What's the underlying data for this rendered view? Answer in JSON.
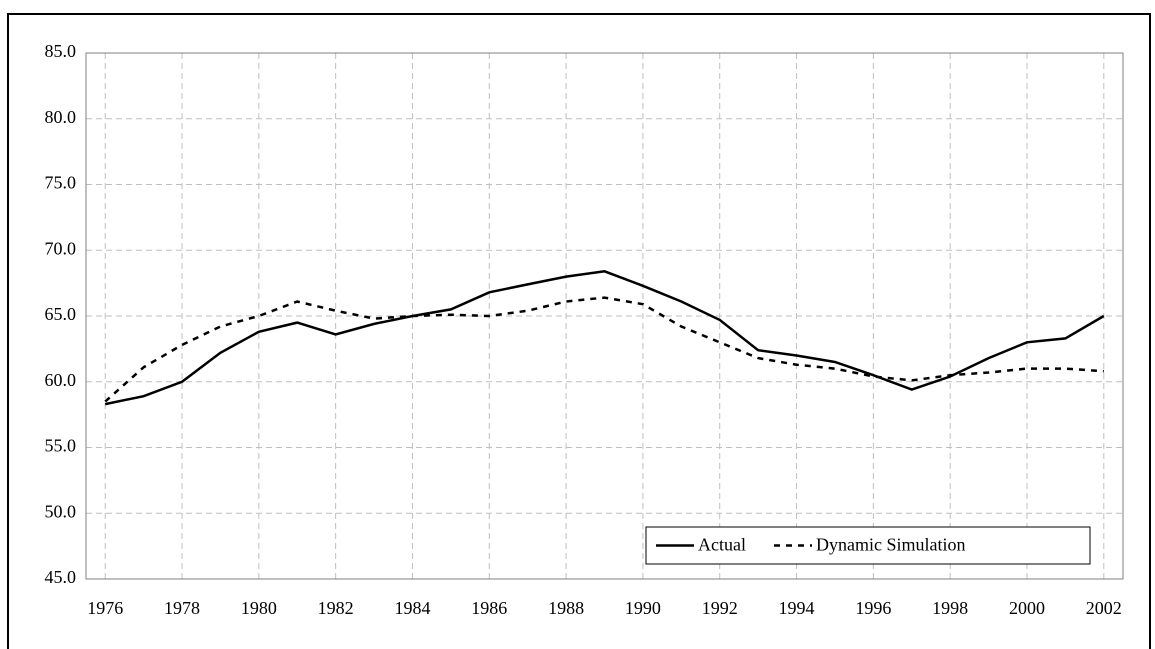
{
  "chart_data": {
    "type": "line",
    "x": [
      1976,
      1977,
      1978,
      1979,
      1980,
      1981,
      1982,
      1983,
      1984,
      1985,
      1986,
      1987,
      1988,
      1989,
      1990,
      1991,
      1992,
      1993,
      1994,
      1995,
      1996,
      1997,
      1998,
      1999,
      2000,
      2001,
      2002
    ],
    "series": [
      {
        "name": "Actual",
        "color": "#000000",
        "dash": "solid",
        "values": [
          58.3,
          58.9,
          60.0,
          62.2,
          63.8,
          64.5,
          63.6,
          64.4,
          65.0,
          65.5,
          66.8,
          67.4,
          68.0,
          68.4,
          67.3,
          66.1,
          64.7,
          62.4,
          62.0,
          61.5,
          60.5,
          59.4,
          60.4,
          61.8,
          63.0,
          63.3,
          65.0
        ]
      },
      {
        "name": "Dynamic Simulation",
        "color": "#000000",
        "dash": "dashed",
        "values": [
          58.5,
          61.1,
          62.8,
          64.2,
          65.0,
          66.1,
          65.4,
          64.8,
          65.0,
          65.1,
          65.0,
          65.4,
          66.1,
          66.4,
          65.9,
          64.2,
          63.0,
          61.8,
          61.3,
          61.0,
          60.4,
          60.1,
          60.5,
          60.7,
          61.0,
          61.0,
          60.8
        ]
      }
    ],
    "xlim": [
      1975.5,
      2002.5
    ],
    "xticks": [
      1976,
      1978,
      1980,
      1982,
      1984,
      1986,
      1988,
      1990,
      1992,
      1994,
      1996,
      1998,
      2000,
      2002
    ],
    "ylim": [
      45,
      85
    ],
    "yticks": [
      {
        "value": 45,
        "label": "45.0"
      },
      {
        "value": 50,
        "label": "50.0"
      },
      {
        "value": 55,
        "label": "55.0"
      },
      {
        "value": 60,
        "label": "60.0"
      },
      {
        "value": 65,
        "label": "65.0"
      },
      {
        "value": 70,
        "label": "70.0"
      },
      {
        "value": 75,
        "label": "75.0"
      },
      {
        "value": 80,
        "label": "80.0"
      },
      {
        "value": 85,
        "label": "85.0"
      }
    ],
    "grid": true,
    "legend": "bottom-right"
  }
}
